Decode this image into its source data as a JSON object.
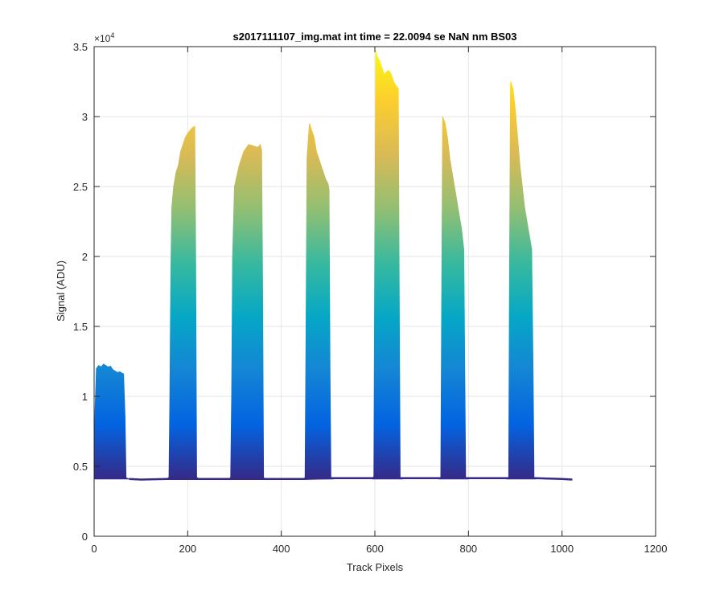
{
  "chart_data": {
    "type": "area",
    "title": "s2017111107_img.mat int time = 22.0094 se  NaN nm BS03",
    "xlabel": "Track Pixels",
    "ylabel": "Signal (ADU)",
    "y_exponent_label": "×10",
    "y_exponent_power": "4",
    "xlim": [
      0,
      1200
    ],
    "ylim": [
      0,
      35000
    ],
    "x_ticks": [
      0,
      200,
      400,
      600,
      800,
      1000,
      1200
    ],
    "x_tick_labels": [
      "0",
      "200",
      "400",
      "600",
      "800",
      "1000",
      "1200"
    ],
    "y_ticks": [
      0,
      5000,
      10000,
      15000,
      20000,
      25000,
      30000,
      35000
    ],
    "y_tick_labels": [
      "0",
      "0.5",
      "1",
      "1.5",
      "2",
      "2.5",
      "3",
      "3.5"
    ],
    "grid": true,
    "baseline": 4100,
    "colormap": [
      "#352a87",
      "#0363e1",
      "#1485d4",
      "#06a7c6",
      "#38b99e",
      "#92bf73",
      "#d9ba56",
      "#fcce2e",
      "#f9fb0e"
    ],
    "series": [
      {
        "x": [
          0,
          2,
          5,
          10,
          15,
          20,
          25,
          30,
          35,
          40,
          45,
          50,
          55,
          60,
          63,
          66,
          68,
          70,
          75
        ],
        "values": [
          4100,
          9000,
          12000,
          12200,
          12100,
          12300,
          12200,
          12100,
          12150,
          11900,
          11800,
          11700,
          11750,
          11650,
          11600,
          8500,
          4200,
          4150,
          4100
        ]
      },
      {
        "x": [
          155,
          160,
          162,
          164,
          166,
          170,
          175,
          180,
          185,
          190,
          195,
          200,
          205,
          210,
          215,
          217,
          219,
          225
        ],
        "values": [
          4100,
          4200,
          10000,
          19000,
          23500,
          25000,
          26000,
          26500,
          27500,
          28000,
          28500,
          28800,
          29000,
          29200,
          29300,
          20000,
          4200,
          4100
        ]
      },
      {
        "x": [
          288,
          292,
          294,
          296,
          300,
          310,
          320,
          330,
          340,
          350,
          355,
          358,
          360,
          362,
          365
        ],
        "values": [
          4100,
          4200,
          10000,
          20000,
          25000,
          26500,
          27500,
          28000,
          27900,
          27800,
          28000,
          27600,
          18000,
          4200,
          4100
        ]
      },
      {
        "x": [
          448,
          451,
          453,
          455,
          460,
          465,
          470,
          475,
          480,
          485,
          490,
          495,
          500,
          502,
          504,
          506,
          510
        ],
        "values": [
          4100,
          4200,
          15000,
          27000,
          29500,
          29000,
          28500,
          27500,
          27000,
          26500,
          26000,
          25500,
          25200,
          24800,
          12000,
          4200,
          4100
        ]
      },
      {
        "x": [
          595,
          598,
          600,
          602,
          605,
          610,
          615,
          620,
          625,
          630,
          635,
          640,
          645,
          650,
          652,
          654,
          658
        ],
        "values": [
          4100,
          4300,
          22000,
          34700,
          34300,
          34000,
          33500,
          33000,
          33200,
          33300,
          33000,
          32500,
          32200,
          32000,
          18000,
          4200,
          4100
        ]
      },
      {
        "x": [
          738,
          741,
          743,
          745,
          750,
          755,
          760,
          765,
          770,
          775,
          780,
          785,
          790,
          792,
          794,
          798
        ],
        "values": [
          4100,
          4200,
          18000,
          30000,
          29500,
          28500,
          27000,
          26000,
          25000,
          24000,
          23000,
          22000,
          20500,
          12000,
          4200,
          4100
        ]
      },
      {
        "x": [
          883,
          886,
          888,
          890,
          895,
          900,
          905,
          910,
          915,
          920,
          925,
          930,
          935,
          938,
          940,
          943
        ],
        "values": [
          4100,
          4200,
          20000,
          32500,
          32000,
          30500,
          28500,
          26500,
          25000,
          23500,
          22500,
          21500,
          20500,
          12000,
          4200,
          4100
        ]
      }
    ],
    "tail": {
      "x": [
        75,
        100,
        155,
        225,
        288,
        365,
        448,
        510,
        595,
        658,
        738,
        798,
        883,
        943,
        1000,
        1022
      ],
      "values": [
        4100,
        4050,
        4100,
        4100,
        4100,
        4100,
        4100,
        4150,
        4150,
        4150,
        4150,
        4150,
        4150,
        4150,
        4100,
        4050
      ]
    }
  }
}
